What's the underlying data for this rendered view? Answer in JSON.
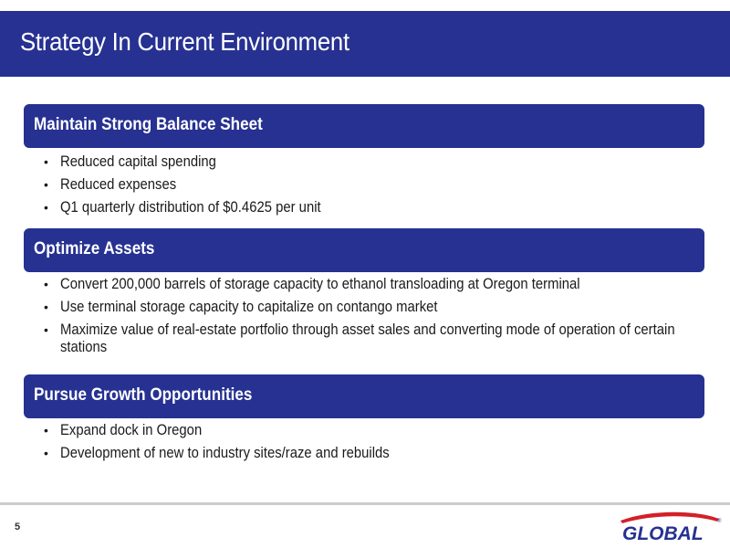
{
  "slide": {
    "title": "Strategy In Current Environment",
    "page_number": "5"
  },
  "sections": [
    {
      "title": "Maintain Strong Balance Sheet",
      "bullets": [
        "Reduced capital spending",
        "Reduced expenses",
        "Q1 quarterly distribution of $0.4625 per unit"
      ]
    },
    {
      "title": "Optimize Assets",
      "bullets": [
        "Convert 200,000 barrels of storage capacity to ethanol transloading at Oregon terminal",
        "Use terminal storage capacity to capitalize on contango market",
        "Maximize value of real-estate portfolio through asset sales and converting mode of operation of certain stations"
      ]
    },
    {
      "title": "Pursue Growth Opportunities",
      "bullets": [
        "Expand dock in Oregon",
        "Development of new to industry sites/raze and rebuilds"
      ]
    }
  ],
  "logo": {
    "text": "GLOBAL",
    "registered_mark": "®"
  },
  "colors": {
    "brand_blue": "#263191",
    "accent_red": "#d32027"
  }
}
